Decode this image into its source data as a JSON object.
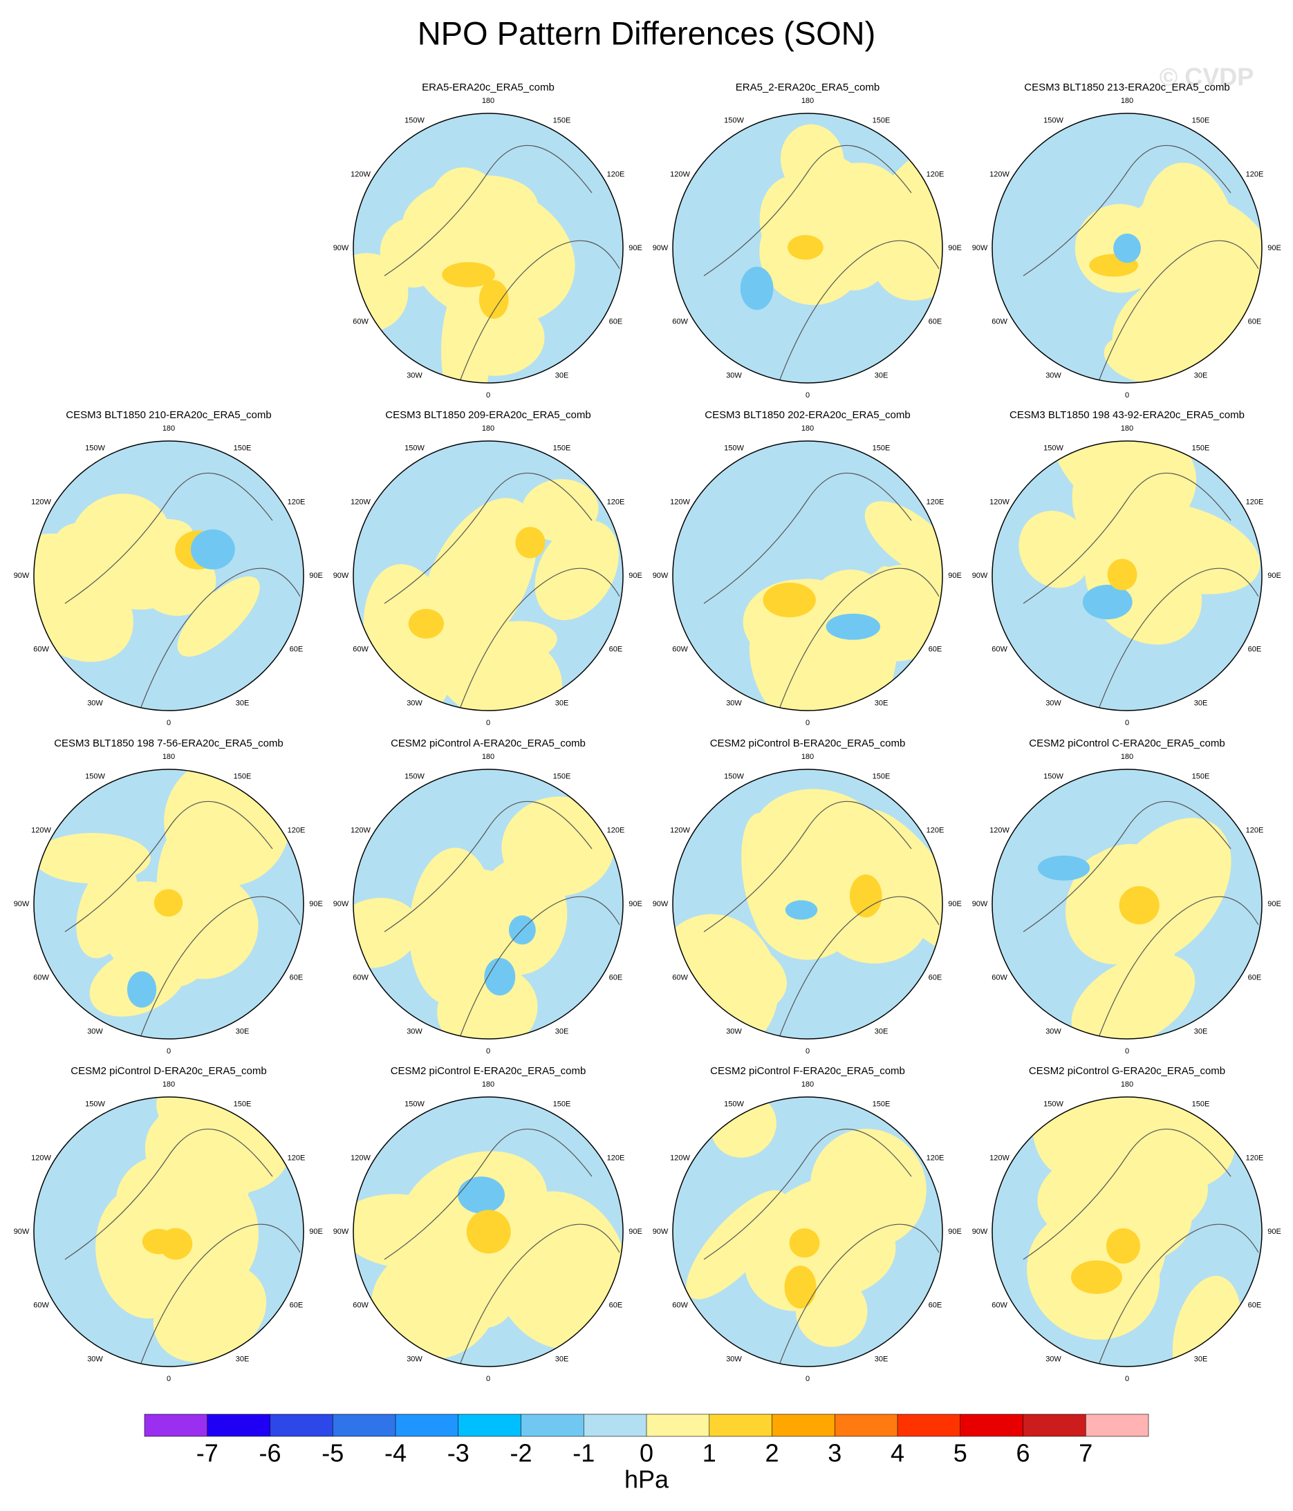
{
  "title": "NPO Pattern Differences (SON)",
  "watermark": "© CVDP",
  "lon_labels": [
    {
      "lon": 180,
      "label": "180"
    },
    {
      "lon": 150,
      "label": "150E"
    },
    {
      "lon": 120,
      "label": "120E"
    },
    {
      "lon": 90,
      "label": "90E"
    },
    {
      "lon": 60,
      "label": "60E"
    },
    {
      "lon": 30,
      "label": "30E"
    },
    {
      "lon": 0,
      "label": "0"
    },
    {
      "lon": -30,
      "label": "30W"
    },
    {
      "lon": -60,
      "label": "60W"
    },
    {
      "lon": -90,
      "label": "90W"
    },
    {
      "lon": -120,
      "label": "120W"
    },
    {
      "lon": -150,
      "label": "150W"
    }
  ],
  "panels": [
    {
      "title": "ERA5-ERA20c_ERA5_comb"
    },
    {
      "title": "ERA5_2-ERA20c_ERA5_comb"
    },
    {
      "title": "CESM3 BLT1850 213-ERA20c_ERA5_comb"
    },
    {
      "title": "CESM3 BLT1850 210-ERA20c_ERA5_comb"
    },
    {
      "title": "CESM3 BLT1850 209-ERA20c_ERA5_comb"
    },
    {
      "title": "CESM3 BLT1850 202-ERA20c_ERA5_comb"
    },
    {
      "title": "CESM3 BLT1850 198 43-92-ERA20c_ERA5_comb"
    },
    {
      "title": "CESM3 BLT1850 198 7-56-ERA20c_ERA5_comb"
    },
    {
      "title": "CESM2 piControl A-ERA20c_ERA5_comb"
    },
    {
      "title": "CESM2 piControl B-ERA20c_ERA5_comb"
    },
    {
      "title": "CESM2 piControl C-ERA20c_ERA5_comb"
    },
    {
      "title": "CESM2 piControl D-ERA20c_ERA5_comb"
    },
    {
      "title": "CESM2 piControl E-ERA20c_ERA5_comb"
    },
    {
      "title": "CESM2 piControl F-ERA20c_ERA5_comb"
    },
    {
      "title": "CESM2 piControl G-ERA20c_ERA5_comb"
    }
  ],
  "chart_data": {
    "type": "colorbar",
    "xlabel": "hPa",
    "xticks": [
      -7,
      -6,
      -5,
      -4,
      -3,
      -2,
      -1,
      0,
      1,
      2,
      3,
      4,
      5,
      6,
      7
    ],
    "colors": [
      "#9a2ff0",
      "#1f00f5",
      "#2d48e8",
      "#2f74e8",
      "#1e95ff",
      "#00bfff",
      "#70c8f2",
      "#b3dff2",
      "#fff59c",
      "#ffd42e",
      "#ffa600",
      "#ff7a10",
      "#ff3300",
      "#e80000",
      "#cc1c1c",
      "#ffb3b3"
    ]
  }
}
